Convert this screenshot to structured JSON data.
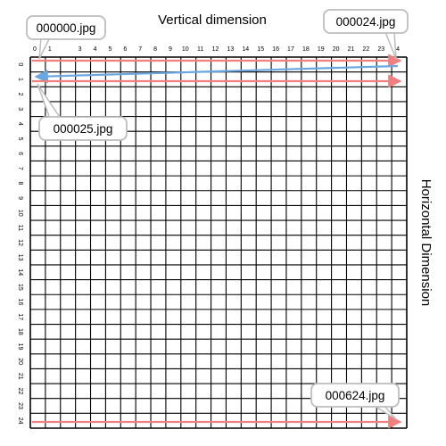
{
  "titles": {
    "top": "Vertical dimension",
    "side": "Horizontal Dimension"
  },
  "grid": {
    "columns": 25,
    "rows": 25,
    "x_ticks": [
      "0",
      "1",
      "",
      "3",
      "4",
      "5",
      "6",
      "7",
      "8",
      "9",
      "10",
      "11",
      "12",
      "13",
      "14",
      "15",
      "16",
      "17",
      "18",
      "19",
      "20",
      "21",
      "22",
      "23",
      "24"
    ],
    "y_ticks": [
      "0",
      "1",
      "2",
      "3",
      "4",
      "5",
      "6",
      "7",
      "8",
      "9",
      "10",
      "11",
      "12",
      "13",
      "14",
      "15",
      "16",
      "17",
      "18",
      "19",
      "20",
      "21",
      "22",
      "23",
      "24"
    ]
  },
  "callouts": {
    "first": "000000.jpg",
    "end_of_row_0": "000024.jpg",
    "start_of_row_1": "000025.jpg",
    "last": "000624.jpg"
  },
  "colors": {
    "row_arrow": "#f08080",
    "return_arrow": "#6aa6e0",
    "grid_line": "#000000",
    "callout_border": "#bdbdbd",
    "callout_fill": "#ffffff"
  }
}
